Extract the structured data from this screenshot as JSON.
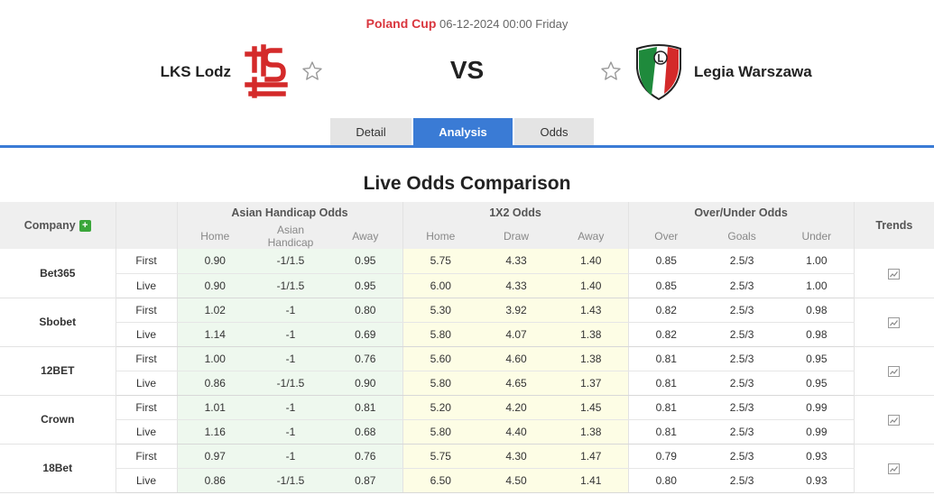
{
  "match": {
    "competition": "Poland Cup",
    "datetime": "06-12-2024 00:00 Friday",
    "home_team": "LKS Lodz",
    "away_team": "Legia Warszawa",
    "vs_label": "VS"
  },
  "tabs": [
    {
      "label": "Detail",
      "active": false
    },
    {
      "label": "Analysis",
      "active": true
    },
    {
      "label": "Odds",
      "active": false
    }
  ],
  "section_title": "Live Odds Comparison",
  "table": {
    "company_header": "Company",
    "groups": {
      "asian_handicap": "Asian Handicap Odds",
      "x12": "1X2 Odds",
      "over_under": "Over/Under Odds",
      "trends": "Trends"
    },
    "sub_headers": {
      "ah": [
        "Home",
        "Asian Handicap",
        "Away"
      ],
      "x12": [
        "Home",
        "Draw",
        "Away"
      ],
      "ou": [
        "Over",
        "Goals",
        "Under"
      ]
    },
    "rows": [
      {
        "company": "Bet365",
        "first": {
          "label": "First",
          "ah": [
            "0.90",
            "-1/1.5",
            "0.95"
          ],
          "x12": [
            "5.75",
            "4.33",
            "1.40"
          ],
          "ou": [
            "0.85",
            "2.5/3",
            "1.00"
          ]
        },
        "live": {
          "label": "Live",
          "ah": [
            "0.90",
            "-1/1.5",
            "0.95"
          ],
          "x12": [
            "6.00",
            "4.33",
            "1.40"
          ],
          "ou": [
            "0.85",
            "2.5/3",
            "1.00"
          ]
        }
      },
      {
        "company": "Sbobet",
        "first": {
          "label": "First",
          "ah": [
            "1.02",
            "-1",
            "0.80"
          ],
          "x12": [
            "5.30",
            "3.92",
            "1.43"
          ],
          "ou": [
            "0.82",
            "2.5/3",
            "0.98"
          ]
        },
        "live": {
          "label": "Live",
          "ah": [
            "1.14",
            "-1",
            "0.69"
          ],
          "x12": [
            "5.80",
            "4.07",
            "1.38"
          ],
          "ou": [
            "0.82",
            "2.5/3",
            "0.98"
          ]
        }
      },
      {
        "company": "12BET",
        "first": {
          "label": "First",
          "ah": [
            "1.00",
            "-1",
            "0.76"
          ],
          "x12": [
            "5.60",
            "4.60",
            "1.38"
          ],
          "ou": [
            "0.81",
            "2.5/3",
            "0.95"
          ]
        },
        "live": {
          "label": "Live",
          "ah": [
            "0.86",
            "-1/1.5",
            "0.90"
          ],
          "x12": [
            "5.80",
            "4.65",
            "1.37"
          ],
          "ou": [
            "0.81",
            "2.5/3",
            "0.95"
          ]
        }
      },
      {
        "company": "Crown",
        "first": {
          "label": "First",
          "ah": [
            "1.01",
            "-1",
            "0.81"
          ],
          "x12": [
            "5.20",
            "4.20",
            "1.45"
          ],
          "ou": [
            "0.81",
            "2.5/3",
            "0.99"
          ]
        },
        "live": {
          "label": "Live",
          "ah": [
            "1.16",
            "-1",
            "0.68"
          ],
          "x12": [
            "5.80",
            "4.40",
            "1.38"
          ],
          "ou": [
            "0.81",
            "2.5/3",
            "0.99"
          ]
        }
      },
      {
        "company": "18Bet",
        "first": {
          "label": "First",
          "ah": [
            "0.97",
            "-1",
            "0.76"
          ],
          "x12": [
            "5.75",
            "4.30",
            "1.47"
          ],
          "ou": [
            "0.79",
            "2.5/3",
            "0.93"
          ]
        },
        "live": {
          "label": "Live",
          "ah": [
            "0.86",
            "-1/1.5",
            "0.87"
          ],
          "x12": [
            "6.50",
            "4.50",
            "1.41"
          ],
          "ou": [
            "0.80",
            "2.5/3",
            "0.93"
          ]
        }
      }
    ]
  },
  "colors": {
    "accent_blue": "#3a7bd5",
    "competition_red": "#d9363e",
    "ah_bg": "#eef8ee",
    "x12_bg": "#fdfde5",
    "plus_green": "#3aa63a"
  },
  "icons": {
    "favorite": "star-outline-icon",
    "trend": "line-chart-icon",
    "add": "plus-icon"
  }
}
